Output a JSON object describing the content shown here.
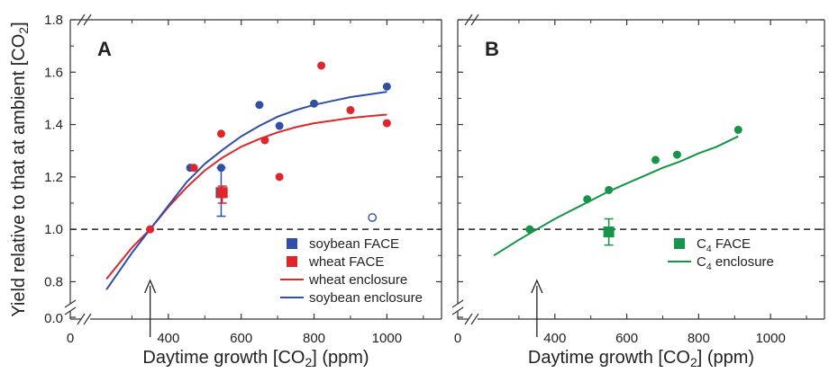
{
  "chart_data": [
    {
      "panel_label": "A",
      "type": "scatter",
      "xlabel": "Daytime growth [CO2] (ppm)",
      "ylabel": "Yield relative to that at ambient [CO2]",
      "xlim": [
        200,
        1150
      ],
      "ylim": [
        0.75,
        1.8
      ],
      "y_break": [
        0.0,
        0.75
      ],
      "x_ticks": [
        0,
        400,
        600,
        800,
        1000
      ],
      "y_ticks": [
        0.0,
        0.8,
        1.0,
        1.2,
        1.4,
        1.6,
        1.8
      ],
      "reference_line": {
        "y": 1.0,
        "style": "dashed"
      },
      "arrow_at_x": 350,
      "series": [
        {
          "name": "soybean enclosure points",
          "kind": "points",
          "color": "#2f4fa8",
          "x": [
            460,
            545,
            650,
            705,
            800,
            1000
          ],
          "y": [
            1.235,
            1.235,
            1.475,
            1.395,
            1.48,
            1.545
          ]
        },
        {
          "name": "wheat enclosure points",
          "kind": "points",
          "color": "#e0262b",
          "x": [
            350,
            470,
            545,
            665,
            705,
            820,
            900,
            1000
          ],
          "y": [
            1.0,
            1.235,
            1.365,
            1.34,
            1.2,
            1.625,
            1.455,
            1.405
          ]
        },
        {
          "name": "open point",
          "kind": "open_point",
          "color": "#2f4fa8",
          "x": [
            960
          ],
          "y": [
            1.045
          ]
        },
        {
          "name": "soybean FACE",
          "kind": "square_errorbar",
          "color": "#2f4fa8",
          "x": [
            545
          ],
          "y": [
            1.14
          ],
          "err_low": [
            1.05
          ],
          "err_high": [
            1.235
          ]
        },
        {
          "name": "wheat FACE",
          "kind": "square_errorbar",
          "color": "#e0262b",
          "x": [
            548
          ],
          "y": [
            1.14
          ],
          "err_low": [
            1.1
          ],
          "err_high": [
            1.165
          ]
        },
        {
          "name": "wheat enclosure",
          "kind": "curve",
          "color": "#e0262b",
          "x": [
            230,
            300,
            350,
            400,
            450,
            500,
            550,
            600,
            650,
            700,
            750,
            800,
            850,
            900,
            950,
            1000
          ],
          "y": [
            0.81,
            0.93,
            1.0,
            1.085,
            1.16,
            1.225,
            1.275,
            1.315,
            1.345,
            1.37,
            1.39,
            1.405,
            1.415,
            1.425,
            1.432,
            1.438
          ]
        },
        {
          "name": "soybean enclosure",
          "kind": "curve",
          "color": "#2f4fa8",
          "x": [
            230,
            300,
            350,
            400,
            450,
            500,
            550,
            600,
            650,
            700,
            750,
            800,
            850,
            900,
            950,
            1000
          ],
          "y": [
            0.77,
            0.91,
            1.0,
            1.09,
            1.18,
            1.25,
            1.305,
            1.355,
            1.395,
            1.43,
            1.455,
            1.475,
            1.49,
            1.505,
            1.515,
            1.525
          ]
        }
      ],
      "legend": {
        "placement": "bottom-right",
        "entries": [
          {
            "label": "soybean FACE",
            "marker": "square",
            "color": "#2f4fa8"
          },
          {
            "label": "wheat FACE",
            "marker": "square",
            "color": "#e0262b"
          },
          {
            "label": "wheat enclosure",
            "marker": "line",
            "color": "#e0262b"
          },
          {
            "label": "soybean enclosure",
            "marker": "line",
            "color": "#2f4fa8"
          }
        ]
      }
    },
    {
      "panel_label": "B",
      "type": "scatter",
      "xlabel": "Daytime growth [CO2] (ppm)",
      "xlim": [
        200,
        1150
      ],
      "ylim": [
        0.75,
        1.8
      ],
      "x_ticks": [
        0,
        400,
        600,
        800,
        1000
      ],
      "reference_line": {
        "y": 1.0,
        "style": "dashed"
      },
      "arrow_at_x": 350,
      "series": [
        {
          "name": "C4 enclosure points",
          "kind": "points",
          "color": "#169447",
          "x": [
            330,
            490,
            550,
            680,
            740,
            910
          ],
          "y": [
            1.0,
            1.115,
            1.15,
            1.265,
            1.285,
            1.38
          ]
        },
        {
          "name": "C4 FACE",
          "kind": "square_errorbar",
          "color": "#169447",
          "x": [
            550
          ],
          "y": [
            0.99
          ],
          "err_low": [
            0.94
          ],
          "err_high": [
            1.04
          ]
        },
        {
          "name": "C4 enclosure",
          "kind": "curve",
          "color": "#169447",
          "x": [
            230,
            300,
            350,
            400,
            450,
            500,
            550,
            600,
            650,
            700,
            750,
            800,
            850,
            910
          ],
          "y": [
            0.9,
            0.96,
            1.0,
            1.04,
            1.075,
            1.11,
            1.145,
            1.175,
            1.205,
            1.235,
            1.26,
            1.29,
            1.315,
            1.355
          ]
        }
      ],
      "legend": {
        "placement": "bottom-right",
        "entries": [
          {
            "label": "C4 FACE",
            "marker": "square",
            "color": "#169447"
          },
          {
            "label": "C4 enclosure",
            "marker": "line",
            "color": "#169447"
          }
        ]
      }
    }
  ]
}
